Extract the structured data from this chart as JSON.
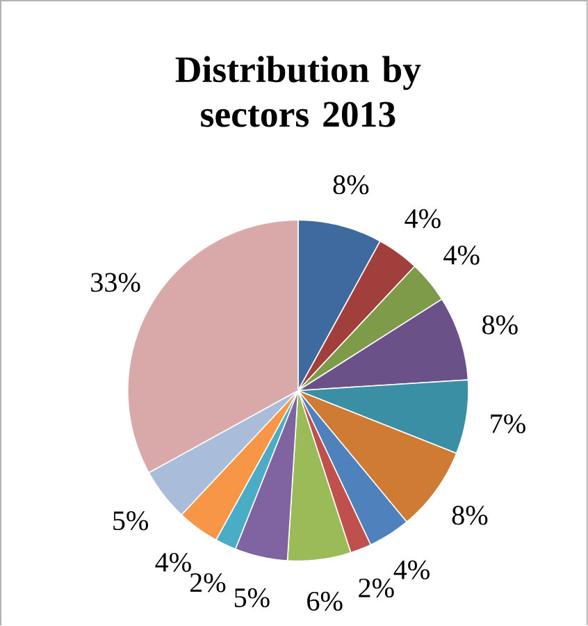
{
  "chart_data": {
    "type": "pie",
    "title": "Distribution by sectors 2013",
    "categories": [
      null,
      null,
      null,
      null,
      null,
      null,
      null,
      null,
      null,
      null,
      null,
      null,
      null,
      null
    ],
    "values": [
      8,
      4,
      4,
      8,
      7,
      8,
      4,
      2,
      6,
      5,
      2,
      4,
      5,
      33
    ],
    "value_labels": [
      "8%",
      "4%",
      "4%",
      "8%",
      "7%",
      "8%",
      "4%",
      "2%",
      "6%",
      "5%",
      "2%",
      "4%",
      "5%",
      "33%"
    ],
    "colors": [
      "#3f6a9f",
      "#a13f3c",
      "#7e9b4a",
      "#6a5289",
      "#3a8fa4",
      "#cf7b34",
      "#4f81bd",
      "#c0504d",
      "#9bbb59",
      "#8064a2",
      "#4bacc6",
      "#f79646",
      "#a9bcda",
      "#d8a9a8"
    ]
  }
}
